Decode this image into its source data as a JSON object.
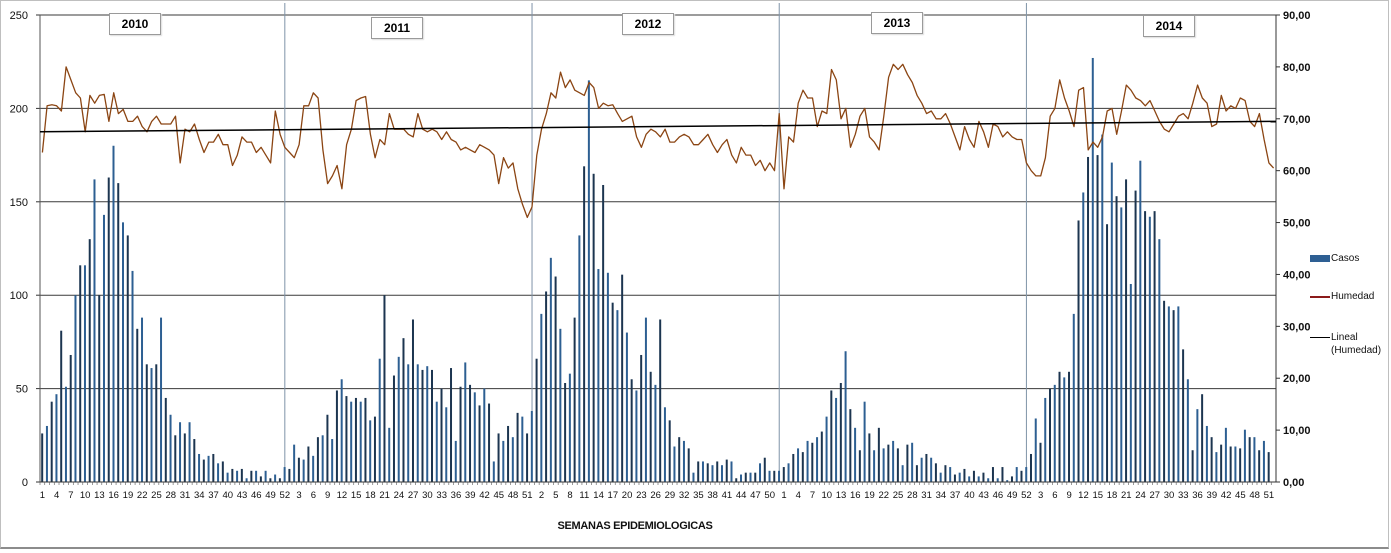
{
  "chart_data": {
    "type": "bar+line",
    "title": "",
    "xlabel": "SEMANAS EPIDEMIOLOGICAS",
    "ylabel": "",
    "ylabel_right": "",
    "ylim": [
      0,
      250
    ],
    "ylim_right": [
      0,
      90
    ],
    "yticks_left": [
      "0",
      "50",
      "100",
      "150",
      "200",
      "250"
    ],
    "yticks_right": [
      "0,00",
      "10,00",
      "20,00",
      "30,00",
      "40,00",
      "50,00",
      "60,00",
      "70,00",
      "80,00",
      "90,00"
    ],
    "grid": true,
    "legend_position": "right",
    "years": [
      "2010",
      "2011",
      "2012",
      "2013",
      "2014"
    ],
    "weeks_per_year": 52,
    "xtick_labels_per_year": [
      "1",
      "4",
      "7",
      "10",
      "13",
      "16",
      "19",
      "22",
      "25",
      "28",
      "31",
      "34",
      "37",
      "40",
      "43",
      "46",
      "49",
      "52"
    ],
    "xtick_labels_2011_plus": [
      "3",
      "6",
      "9",
      "12",
      "15",
      "18",
      "21",
      "24",
      "27",
      "30",
      "33",
      "36",
      "39",
      "42",
      "45",
      "48",
      "51"
    ],
    "series": [
      {
        "name": "Casos",
        "type": "bar",
        "axis": "left",
        "color": "#2e5f93",
        "values": [
          26,
          30,
          43,
          47,
          81,
          51,
          68,
          100,
          116,
          116,
          130,
          162,
          100,
          143,
          163,
          180,
          160,
          139,
          132,
          113,
          82,
          88,
          63,
          61,
          63,
          88,
          45,
          36,
          25,
          32,
          26,
          32,
          23,
          15,
          12,
          14,
          15,
          10,
          11,
          5,
          7,
          6,
          7,
          2,
          6,
          6,
          3,
          6,
          2,
          4,
          2,
          8,
          7,
          20,
          13,
          12,
          19,
          14,
          24,
          25,
          36,
          23,
          49,
          55,
          46,
          43,
          45,
          43,
          45,
          33,
          35,
          66,
          100,
          29,
          57,
          67,
          77,
          63,
          87,
          63,
          60,
          62,
          60,
          43,
          50,
          40,
          61,
          22,
          51,
          64,
          52,
          48,
          41,
          50,
          42,
          11,
          26,
          22,
          30,
          24,
          37,
          35,
          26,
          38,
          66,
          90,
          102,
          120,
          110,
          82,
          53,
          58,
          88,
          132,
          169,
          215,
          165,
          114,
          159,
          112,
          96,
          92,
          111,
          80,
          55,
          49,
          68,
          88,
          59,
          52,
          87,
          40,
          33,
          19,
          24,
          22,
          18,
          5,
          11,
          11,
          10,
          9,
          11,
          9,
          12,
          11,
          2,
          4,
          5,
          5,
          5,
          10,
          13,
          6,
          6,
          6,
          8,
          10,
          15,
          18,
          16,
          22,
          21,
          24,
          27,
          35,
          49,
          45,
          53,
          70,
          39,
          29,
          17,
          43,
          26,
          17,
          29,
          18,
          20,
          22,
          18,
          9,
          20,
          21,
          9,
          13,
          15,
          13,
          10,
          5,
          9,
          8,
          4,
          5,
          7,
          3,
          6,
          3,
          5,
          2,
          8,
          2,
          8,
          1,
          3,
          8,
          6,
          8,
          15,
          34,
          21,
          45,
          50,
          52,
          59,
          56,
          59,
          90,
          140,
          155,
          174,
          227,
          175,
          186,
          138,
          171,
          153,
          147,
          162,
          106,
          156,
          172,
          145,
          142,
          145,
          130,
          97,
          94,
          92,
          94,
          71,
          55,
          17,
          39,
          47,
          30,
          24,
          16,
          20,
          29,
          19,
          19,
          18,
          28,
          24,
          24,
          17,
          22,
          16
        ]
      },
      {
        "name": "Humedad",
        "type": "line",
        "axis": "right",
        "color": "#8b4513",
        "values": [
          63.5,
          72.5,
          72.7,
          72.5,
          71.5,
          80.0,
          77.5,
          75.0,
          74.0,
          67.5,
          74.5,
          73.0,
          74.5,
          74.7,
          69.5,
          75.0,
          71.0,
          71.8,
          69.5,
          69.5,
          70.5,
          68.5,
          67.5,
          69.5,
          70.5,
          69.0,
          69.0,
          69.0,
          70.5,
          61.5,
          68.0,
          67.5,
          69.0,
          66.0,
          63.5,
          65.5,
          65.5,
          67.0,
          65.0,
          65.0,
          61.0,
          63.0,
          66.5,
          65.5,
          65.5,
          63.5,
          64.5,
          63.0,
          61.5,
          71.5,
          67.0,
          64.5,
          63.5,
          62.5,
          65.0,
          72.5,
          72.5,
          75.0,
          74.0,
          64.0,
          57.5,
          59.0,
          61.0,
          56.5,
          65.0,
          68.0,
          73.5,
          74.0,
          74.3,
          67.0,
          62.5,
          66.0,
          65.0,
          71.0,
          68.0,
          68.0,
          68.0,
          67.0,
          66.5,
          71.0,
          68.0,
          67.5,
          68.0,
          67.5,
          66.0,
          67.5,
          66.0,
          65.5,
          64.0,
          64.5,
          64.0,
          63.5,
          65.0,
          64.5,
          64.0,
          63.0,
          57.5,
          62.5,
          60.5,
          61.5,
          56.5,
          53.5,
          51.0,
          53.0,
          63.0,
          68.0,
          71.0,
          75.0,
          74.0,
          79.0,
          76.0,
          77.5,
          75.5,
          75.0,
          74.5,
          77.0,
          76.0,
          72.0,
          73.0,
          72.5,
          72.7,
          71.0,
          69.5,
          70.0,
          70.5,
          66.5,
          64.5,
          67.0,
          68.0,
          67.5,
          66.5,
          68.0,
          65.5,
          65.5,
          66.5,
          67.0,
          66.5,
          65.0,
          65.0,
          66.0,
          67.0,
          65.0,
          63.5,
          65.0,
          66.0,
          63.0,
          61.5,
          64.5,
          63.0,
          63.0,
          61.0,
          62.0,
          60.0,
          61.5,
          60.0,
          71.0,
          56.5,
          66.5,
          65.5,
          73.0,
          75.5,
          74.0,
          74.0,
          68.5,
          71.5,
          71.0,
          79.5,
          77.5,
          70.0,
          72.0,
          64.5,
          67.0,
          70.5,
          72.0,
          66.5,
          65.5,
          64.0,
          70.5,
          78.0,
          80.5,
          79.5,
          80.5,
          78.5,
          77.0,
          74.5,
          73.0,
          71.0,
          71.5,
          70.0,
          70.0,
          71.0,
          69.0,
          66.5,
          64.0,
          68.5,
          66.0,
          64.5,
          69.5,
          67.5,
          64.5,
          69.0,
          68.5,
          66.5,
          67.5,
          66.5,
          66.0,
          66.0,
          61.5,
          60.0,
          59.0,
          59.0,
          62.5,
          70.5,
          72.0,
          77.5,
          74.0,
          71.5,
          68.5,
          75.5,
          76.0,
          64.0,
          65.5,
          64.5,
          66.5,
          71.5,
          72.0,
          67.0,
          71.5,
          76.5,
          75.5,
          74.0,
          73.5,
          72.5,
          73.5,
          71.5,
          69.5,
          68.0,
          67.5,
          69.0,
          70.5,
          71.0,
          70.0,
          73.0,
          76.5,
          74.0,
          73.0,
          68.5,
          69.0,
          74.5,
          71.5,
          72.5,
          72.0,
          74.0,
          73.5,
          69.5,
          68.5,
          71.0,
          66.0,
          61.5,
          60.5,
          61.0,
          61.0,
          66.0
        ]
      },
      {
        "name": "Lineal (Humedad)",
        "type": "trendline",
        "axis": "right",
        "color": "#000000",
        "values": [
          67.5,
          69.5
        ]
      }
    ]
  },
  "legend": {
    "items": [
      {
        "label": "Casos"
      },
      {
        "label": "Humedad"
      },
      {
        "label_line1": "Lineal",
        "label_line2": "(Humedad)"
      }
    ]
  },
  "year_labels": [
    "2010",
    "2011",
    "2012",
    "2013",
    "2014"
  ]
}
